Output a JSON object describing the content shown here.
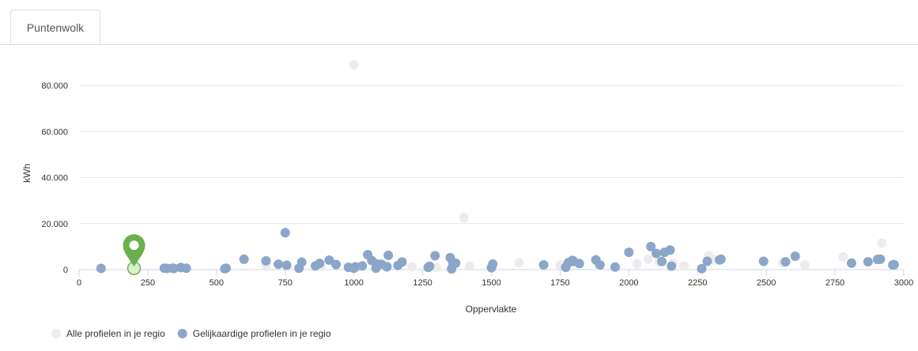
{
  "tabs": [
    {
      "label": "Puntenwolk",
      "active": true
    }
  ],
  "chart_data": {
    "type": "scatter",
    "title": "",
    "xlabel": "Oppervlakte",
    "ylabel": "kWh",
    "xlim": [
      0,
      3000
    ],
    "ylim": [
      0,
      90000
    ],
    "x_ticks": [
      0,
      250,
      500,
      750,
      1000,
      1250,
      1500,
      1750,
      2000,
      2250,
      2500,
      2750,
      3000
    ],
    "x_tick_labels": [
      "0",
      "250",
      "500",
      "750",
      "1000",
      "1250",
      "1500",
      "1750",
      "2000",
      "2250",
      "2500",
      "2750",
      "3000"
    ],
    "y_ticks": [
      0,
      20000,
      40000,
      60000,
      80000
    ],
    "y_tick_labels": [
      "0",
      "20.000",
      "40.000",
      "60.000",
      "80.000"
    ],
    "grid": "horizontal",
    "legend_position": "bottom-left",
    "series": [
      {
        "name": "Alle profielen in je regio",
        "color": "#ececec",
        "points": [
          [
            1000,
            89000
          ],
          [
            1400,
            22500
          ],
          [
            1300,
            1000
          ],
          [
            1420,
            1500
          ],
          [
            1600,
            3000
          ],
          [
            1750,
            2000
          ],
          [
            1890,
            1800
          ],
          [
            2030,
            2500
          ],
          [
            2070,
            4500
          ],
          [
            2110,
            3200
          ],
          [
            2160,
            2800
          ],
          [
            2290,
            6000
          ],
          [
            2310,
            4200
          ],
          [
            2780,
            5500
          ],
          [
            2920,
            11500
          ],
          [
            2910,
            4800
          ],
          [
            2560,
            3000
          ],
          [
            680,
            2000
          ],
          [
            880,
            1500
          ],
          [
            1120,
            1800
          ],
          [
            1210,
            1200
          ],
          [
            1500,
            800
          ],
          [
            2200,
            1500
          ],
          [
            2640,
            2000
          ]
        ]
      },
      {
        "name": "Gelijkaardige profielen in je regio",
        "color": "#8ba6c9",
        "points": [
          [
            80,
            500
          ],
          [
            310,
            600
          ],
          [
            320,
            500
          ],
          [
            340,
            600
          ],
          [
            345,
            500
          ],
          [
            370,
            900
          ],
          [
            390,
            600
          ],
          [
            530,
            400
          ],
          [
            535,
            600
          ],
          [
            600,
            4500
          ],
          [
            680,
            3800
          ],
          [
            725,
            2300
          ],
          [
            750,
            16000
          ],
          [
            755,
            1900
          ],
          [
            800,
            600
          ],
          [
            810,
            3200
          ],
          [
            860,
            1600
          ],
          [
            875,
            2700
          ],
          [
            910,
            4100
          ],
          [
            935,
            2200
          ],
          [
            980,
            1000
          ],
          [
            1000,
            600
          ],
          [
            1005,
            1200
          ],
          [
            1030,
            1600
          ],
          [
            1050,
            6500
          ],
          [
            1065,
            3900
          ],
          [
            1080,
            600
          ],
          [
            1085,
            2400
          ],
          [
            1100,
            2300
          ],
          [
            1120,
            1200
          ],
          [
            1125,
            6200
          ],
          [
            1160,
            1800
          ],
          [
            1175,
            3300
          ],
          [
            1270,
            1000
          ],
          [
            1275,
            1400
          ],
          [
            1295,
            6000
          ],
          [
            1350,
            5200
          ],
          [
            1355,
            300
          ],
          [
            1360,
            2500
          ],
          [
            1370,
            2800
          ],
          [
            1500,
            800
          ],
          [
            1505,
            2400
          ],
          [
            1690,
            2000
          ],
          [
            1770,
            1000
          ],
          [
            1780,
            3000
          ],
          [
            1795,
            4000
          ],
          [
            1800,
            3500
          ],
          [
            1820,
            2600
          ],
          [
            1880,
            4200
          ],
          [
            1895,
            2000
          ],
          [
            1950,
            1100
          ],
          [
            2000,
            7500
          ],
          [
            2080,
            10000
          ],
          [
            2100,
            7000
          ],
          [
            2120,
            3500
          ],
          [
            2130,
            7500
          ],
          [
            2150,
            8500
          ],
          [
            2155,
            1500
          ],
          [
            2265,
            400
          ],
          [
            2285,
            3600
          ],
          [
            2330,
            4200
          ],
          [
            2335,
            4500
          ],
          [
            2490,
            3600
          ],
          [
            2570,
            3400
          ],
          [
            2605,
            5800
          ],
          [
            2810,
            2800
          ],
          [
            2870,
            3400
          ],
          [
            2905,
            4400
          ],
          [
            2915,
            4500
          ],
          [
            2960,
            2000
          ],
          [
            2965,
            2100
          ]
        ]
      }
    ],
    "marker": {
      "x": 200,
      "y": 600,
      "color": "#6ab04c"
    }
  }
}
